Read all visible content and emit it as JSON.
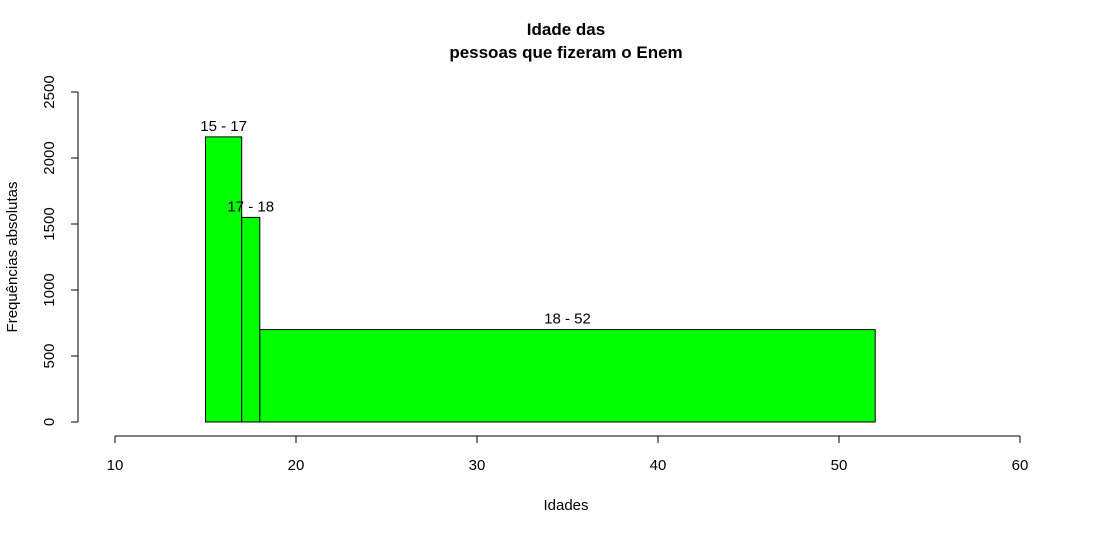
{
  "chart_data": {
    "type": "bar",
    "title": "Idade das",
    "subtitle": "pessoas que fizeram o Enem",
    "xlabel": "Idades",
    "ylabel": "Frequências absolutas",
    "xlim": [
      10,
      60
    ],
    "ylim": [
      0,
      2500
    ],
    "x_ticks": [
      10,
      20,
      30,
      40,
      50,
      60
    ],
    "y_ticks": [
      0,
      500,
      1000,
      1500,
      2000,
      2500
    ],
    "bins": [
      {
        "label": "15 - 17",
        "from": 15,
        "to": 17,
        "value": 2160
      },
      {
        "label": "17 - 18",
        "from": 17,
        "to": 18,
        "value": 1550
      },
      {
        "label": "18 - 52",
        "from": 18,
        "to": 52,
        "value": 700
      }
    ],
    "bar_color": "#00ff00",
    "bar_border_color": "#000000",
    "grid": false,
    "legend": "none"
  }
}
